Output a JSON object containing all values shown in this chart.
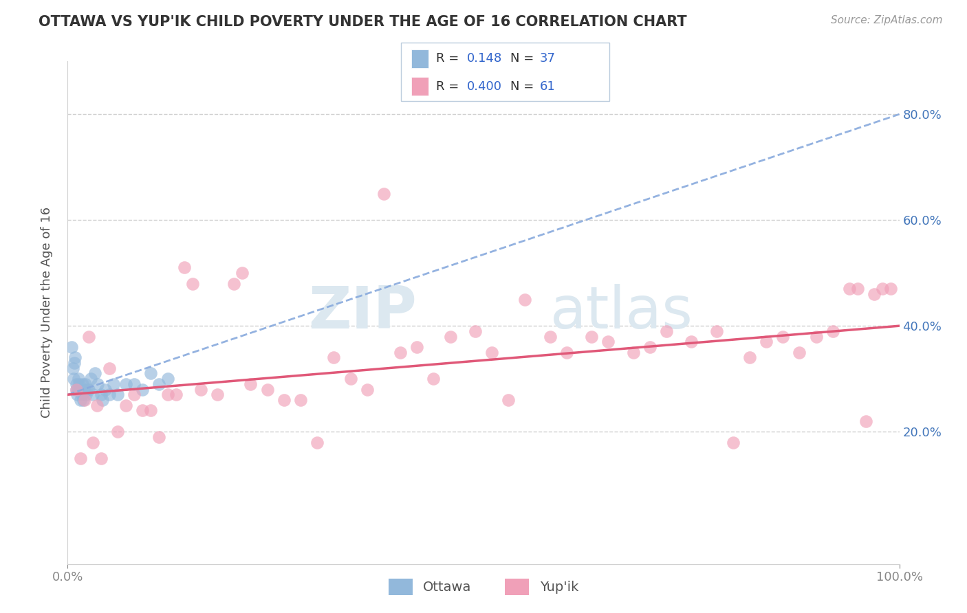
{
  "title": "OTTAWA VS YUP'IK CHILD POVERTY UNDER THE AGE OF 16 CORRELATION CHART",
  "source": "Source: ZipAtlas.com",
  "ylabel": "Child Poverty Under the Age of 16",
  "xlim": [
    0.0,
    1.0
  ],
  "ylim": [
    -0.05,
    0.9
  ],
  "y_ticks": [
    0.2,
    0.4,
    0.6,
    0.8
  ],
  "y_tick_labels": [
    "20.0%",
    "40.0%",
    "60.0%",
    "80.0%"
  ],
  "ottawa_R": 0.148,
  "ottawa_N": 37,
  "yupik_R": 0.4,
  "yupik_N": 61,
  "ottawa_scatter_color": "#92b8db",
  "yupik_scatter_color": "#f0a0b8",
  "trend_line_ottawa_color": "#88aadd",
  "trend_line_yupik_color": "#e05878",
  "grid_color": "#d0d0d0",
  "background_color": "#ffffff",
  "ottawa_x": [
    0.005,
    0.006,
    0.007,
    0.008,
    0.009,
    0.01,
    0.01,
    0.011,
    0.012,
    0.013,
    0.014,
    0.015,
    0.016,
    0.017,
    0.018,
    0.019,
    0.02,
    0.021,
    0.022,
    0.023,
    0.025,
    0.028,
    0.03,
    0.033,
    0.036,
    0.04,
    0.042,
    0.045,
    0.05,
    0.055,
    0.06,
    0.07,
    0.08,
    0.09,
    0.1,
    0.11,
    0.12
  ],
  "ottawa_y": [
    0.36,
    0.32,
    0.3,
    0.33,
    0.34,
    0.28,
    0.29,
    0.27,
    0.28,
    0.3,
    0.29,
    0.26,
    0.28,
    0.27,
    0.29,
    0.26,
    0.28,
    0.29,
    0.27,
    0.28,
    0.28,
    0.3,
    0.27,
    0.31,
    0.29,
    0.27,
    0.26,
    0.28,
    0.27,
    0.29,
    0.27,
    0.29,
    0.29,
    0.28,
    0.31,
    0.29,
    0.3
  ],
  "yupik_x": [
    0.01,
    0.015,
    0.02,
    0.025,
    0.03,
    0.035,
    0.04,
    0.05,
    0.06,
    0.07,
    0.08,
    0.09,
    0.1,
    0.11,
    0.12,
    0.13,
    0.14,
    0.15,
    0.16,
    0.18,
    0.2,
    0.21,
    0.22,
    0.24,
    0.26,
    0.28,
    0.3,
    0.32,
    0.34,
    0.36,
    0.38,
    0.4,
    0.42,
    0.44,
    0.46,
    0.49,
    0.51,
    0.53,
    0.55,
    0.58,
    0.6,
    0.63,
    0.65,
    0.68,
    0.7,
    0.72,
    0.75,
    0.78,
    0.8,
    0.82,
    0.84,
    0.86,
    0.88,
    0.9,
    0.92,
    0.94,
    0.95,
    0.96,
    0.97,
    0.98,
    0.99
  ],
  "yupik_y": [
    0.28,
    0.15,
    0.26,
    0.38,
    0.18,
    0.25,
    0.15,
    0.32,
    0.2,
    0.25,
    0.27,
    0.24,
    0.24,
    0.19,
    0.27,
    0.27,
    0.51,
    0.48,
    0.28,
    0.27,
    0.48,
    0.5,
    0.29,
    0.28,
    0.26,
    0.26,
    0.18,
    0.34,
    0.3,
    0.28,
    0.65,
    0.35,
    0.36,
    0.3,
    0.38,
    0.39,
    0.35,
    0.26,
    0.45,
    0.38,
    0.35,
    0.38,
    0.37,
    0.35,
    0.36,
    0.39,
    0.37,
    0.39,
    0.18,
    0.34,
    0.37,
    0.38,
    0.35,
    0.38,
    0.39,
    0.47,
    0.47,
    0.22,
    0.46,
    0.47,
    0.47
  ]
}
